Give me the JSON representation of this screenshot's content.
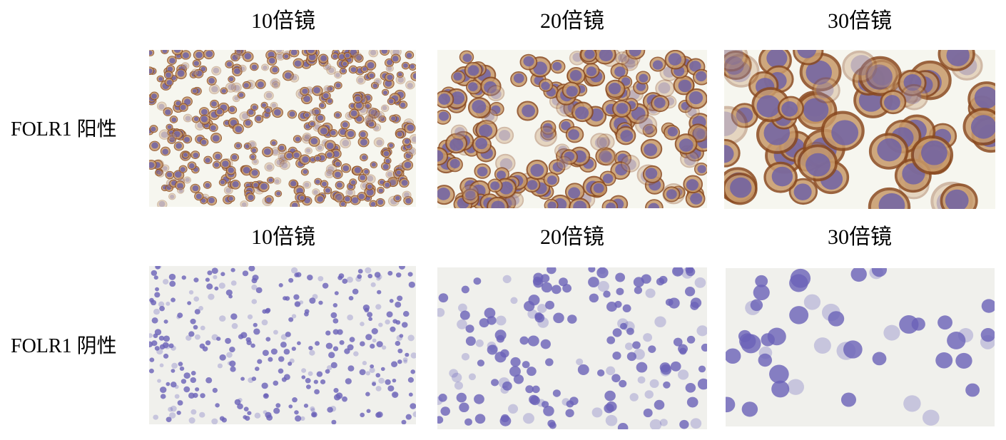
{
  "rows": [
    {
      "label": "FOLR1 阳性",
      "headers": [
        "10倍镜",
        "20倍镜",
        "30倍镜"
      ],
      "background": "#f6f6ef",
      "nucleus_color": "#6a5fa8",
      "membrane_color": "#8a4a20"
    },
    {
      "label": "FOLR1 阴性",
      "headers": [
        "10倍镜",
        "20倍镜",
        "30倍镜"
      ],
      "background": "#f0f0ec",
      "nucleus_color": "#6a62b8",
      "membrane_color": null
    }
  ]
}
